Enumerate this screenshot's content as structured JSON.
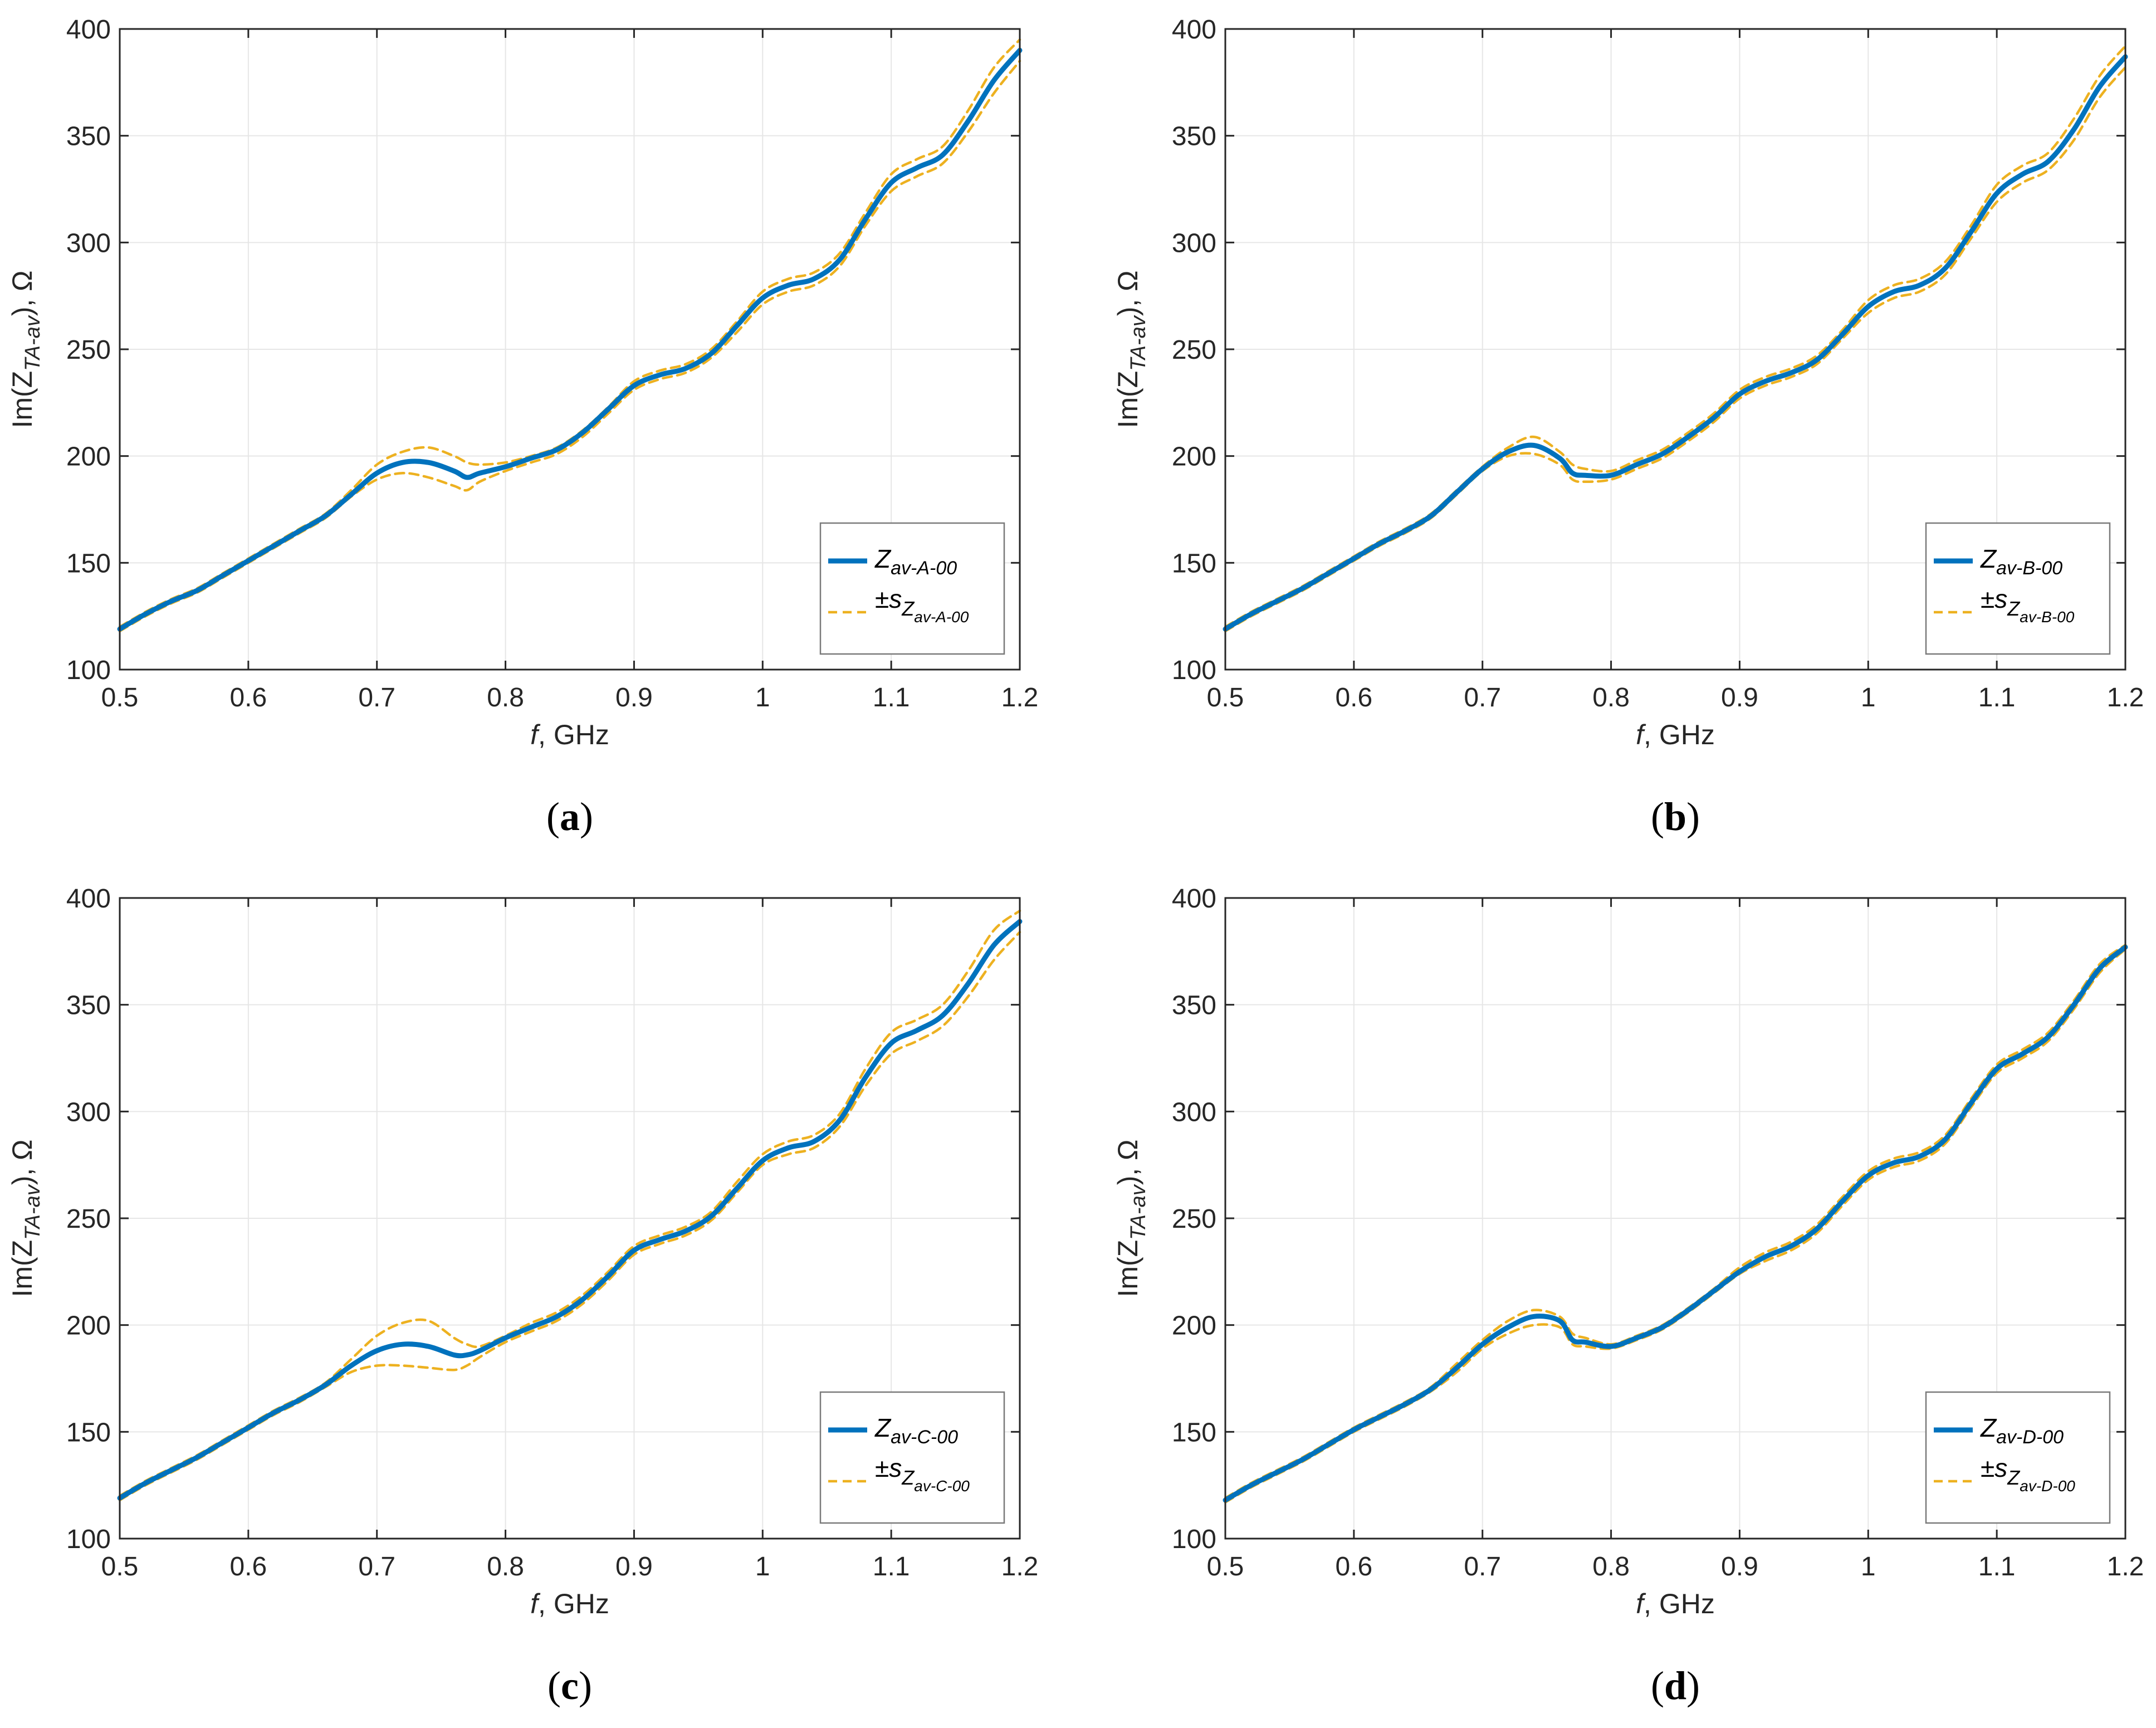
{
  "figure": {
    "panels": [
      "a",
      "b",
      "c",
      "d"
    ]
  },
  "colors": {
    "mean_line": "#0072BD",
    "std_line": "#EDB120",
    "grid": "#e6e6e6",
    "axis": "#262626",
    "legend_border": "#7a7a7a"
  },
  "chart_data": [
    {
      "type": "line",
      "panel_label": "(a)",
      "caption_letter": "a",
      "xlabel_italic": "f",
      "xlabel_rest": ", GHz",
      "ylabel_prefix": "Im(Z",
      "ylabel_sub": "TA-av",
      "ylabel_suffix": "), Ω",
      "xlim": [
        0.5,
        1.2
      ],
      "ylim": [
        100,
        400
      ],
      "xticks": [
        0.5,
        0.6,
        0.7,
        0.8,
        0.9,
        1,
        1.1,
        1.2
      ],
      "xtick_labels": [
        "0.5",
        "0.6",
        "0.7",
        "0.8",
        "0.9",
        "1",
        "1.1",
        "1.2"
      ],
      "yticks": [
        100,
        150,
        200,
        250,
        300,
        350,
        400
      ],
      "ytick_labels": [
        "100",
        "150",
        "200",
        "250",
        "300",
        "350",
        "400"
      ],
      "grid": true,
      "legend_position": "bottom-right",
      "legend": {
        "mean_main": "Z",
        "mean_sub": "av-A-00",
        "std_prefix": "±s",
        "std_sub1": "Z",
        "std_sub2": "av-A-00"
      },
      "x": [
        0.5,
        0.52,
        0.54,
        0.56,
        0.58,
        0.6,
        0.62,
        0.64,
        0.66,
        0.68,
        0.7,
        0.72,
        0.74,
        0.76,
        0.77,
        0.78,
        0.8,
        0.82,
        0.84,
        0.86,
        0.88,
        0.9,
        0.92,
        0.94,
        0.96,
        0.98,
        1.0,
        1.02,
        1.04,
        1.06,
        1.08,
        1.1,
        1.12,
        1.14,
        1.16,
        1.18,
        1.2
      ],
      "series": [
        {
          "name": "mean",
          "values": [
            119,
            126,
            132,
            137,
            144,
            151,
            158,
            165,
            172,
            182,
            192,
            197,
            197,
            193,
            190,
            192,
            195,
            199,
            203,
            211,
            222,
            233,
            238,
            241,
            248,
            261,
            274,
            280,
            283,
            292,
            311,
            328,
            335,
            341,
            357,
            376,
            390
          ]
        },
        {
          "name": "upper",
          "values": [
            120,
            127,
            133,
            138,
            145,
            152,
            159,
            166,
            173,
            184,
            196,
            202,
            204,
            200,
            197,
            196,
            197,
            200,
            204,
            212,
            223,
            235,
            240,
            243,
            250,
            263,
            277,
            283,
            286,
            295,
            314,
            332,
            339,
            345,
            362,
            382,
            395
          ]
        },
        {
          "name": "lower",
          "values": [
            118,
            125,
            131,
            136,
            143,
            150,
            157,
            164,
            171,
            181,
            189,
            192,
            190,
            186,
            184,
            188,
            193,
            197,
            201,
            209,
            220,
            231,
            236,
            239,
            246,
            258,
            271,
            277,
            280,
            289,
            308,
            324,
            331,
            337,
            352,
            370,
            385
          ]
        }
      ]
    },
    {
      "type": "line",
      "panel_label": "(b)",
      "caption_letter": "b",
      "xlabel_italic": "f",
      "xlabel_rest": ", GHz",
      "ylabel_prefix": "Im(Z",
      "ylabel_sub": "TA-av",
      "ylabel_suffix": "), Ω",
      "xlim": [
        0.5,
        1.2
      ],
      "ylim": [
        100,
        400
      ],
      "xticks": [
        0.5,
        0.6,
        0.7,
        0.8,
        0.9,
        1,
        1.1,
        1.2
      ],
      "xtick_labels": [
        "0.5",
        "0.6",
        "0.7",
        "0.8",
        "0.9",
        "1",
        "1.1",
        "1.2"
      ],
      "yticks": [
        100,
        150,
        200,
        250,
        300,
        350,
        400
      ],
      "ytick_labels": [
        "100",
        "150",
        "200",
        "250",
        "300",
        "350",
        "400"
      ],
      "grid": true,
      "legend_position": "bottom-right",
      "legend": {
        "mean_main": "Z",
        "mean_sub": "av-B-00",
        "std_prefix": "±s",
        "std_sub1": "Z",
        "std_sub2": "av-B-00"
      },
      "x": [
        0.5,
        0.52,
        0.54,
        0.56,
        0.58,
        0.6,
        0.62,
        0.64,
        0.66,
        0.68,
        0.7,
        0.72,
        0.74,
        0.76,
        0.77,
        0.78,
        0.8,
        0.82,
        0.84,
        0.86,
        0.88,
        0.9,
        0.92,
        0.94,
        0.96,
        0.98,
        1.0,
        1.02,
        1.04,
        1.06,
        1.08,
        1.1,
        1.12,
        1.14,
        1.16,
        1.18,
        1.2
      ],
      "series": [
        {
          "name": "mean",
          "values": [
            119,
            126,
            132,
            138,
            145,
            152,
            159,
            165,
            172,
            183,
            194,
            202,
            205,
            199,
            192,
            191,
            191,
            196,
            201,
            209,
            218,
            229,
            235,
            239,
            245,
            257,
            270,
            277,
            280,
            288,
            305,
            323,
            332,
            338,
            353,
            373,
            387
          ]
        },
        {
          "name": "upper",
          "values": [
            120,
            127,
            133,
            139,
            146,
            153,
            160,
            166,
            173,
            184,
            195,
            204,
            209,
            202,
            196,
            194,
            193,
            198,
            203,
            211,
            220,
            231,
            237,
            241,
            247,
            259,
            273,
            280,
            283,
            291,
            308,
            327,
            336,
            342,
            358,
            378,
            392
          ]
        },
        {
          "name": "lower",
          "values": [
            118,
            125,
            131,
            137,
            144,
            151,
            158,
            164,
            171,
            182,
            193,
            200,
            201,
            196,
            189,
            188,
            189,
            194,
            199,
            207,
            216,
            227,
            233,
            237,
            243,
            255,
            267,
            274,
            277,
            285,
            302,
            319,
            328,
            334,
            348,
            368,
            382
          ]
        }
      ]
    },
    {
      "type": "line",
      "panel_label": "(c)",
      "caption_letter": "c",
      "xlabel_italic": "f",
      "xlabel_rest": ", GHz",
      "ylabel_prefix": "Im(Z",
      "ylabel_sub": "TA-av",
      "ylabel_suffix": "), Ω",
      "xlim": [
        0.5,
        1.2
      ],
      "ylim": [
        100,
        400
      ],
      "xticks": [
        0.5,
        0.6,
        0.7,
        0.8,
        0.9,
        1,
        1.1,
        1.2
      ],
      "xtick_labels": [
        "0.5",
        "0.6",
        "0.7",
        "0.8",
        "0.9",
        "1",
        "1.1",
        "1.2"
      ],
      "yticks": [
        100,
        150,
        200,
        250,
        300,
        350,
        400
      ],
      "ytick_labels": [
        "100",
        "150",
        "200",
        "250",
        "300",
        "350",
        "400"
      ],
      "grid": true,
      "legend_position": "bottom-right",
      "legend": {
        "mean_main": "Z",
        "mean_sub": "av-C-00",
        "std_prefix": "±s",
        "std_sub1": "Z",
        "std_sub2": "av-C-00"
      },
      "x": [
        0.5,
        0.52,
        0.54,
        0.56,
        0.58,
        0.6,
        0.62,
        0.64,
        0.66,
        0.68,
        0.7,
        0.72,
        0.74,
        0.76,
        0.77,
        0.78,
        0.8,
        0.82,
        0.84,
        0.86,
        0.88,
        0.9,
        0.92,
        0.94,
        0.96,
        0.98,
        1.0,
        1.02,
        1.04,
        1.06,
        1.08,
        1.1,
        1.12,
        1.14,
        1.16,
        1.18,
        1.2
      ],
      "series": [
        {
          "name": "mean",
          "values": [
            119,
            126,
            132,
            138,
            145,
            152,
            159,
            165,
            172,
            181,
            188,
            191,
            190,
            186,
            186,
            188,
            194,
            199,
            204,
            212,
            223,
            235,
            240,
            244,
            251,
            264,
            277,
            283,
            286,
            296,
            316,
            332,
            338,
            345,
            360,
            378,
            389
          ]
        },
        {
          "name": "upper",
          "values": [
            120,
            127,
            133,
            139,
            146,
            153,
            160,
            166,
            173,
            184,
            195,
            201,
            202,
            194,
            191,
            190,
            195,
            201,
            206,
            214,
            225,
            237,
            242,
            246,
            253,
            267,
            280,
            286,
            289,
            299,
            320,
            337,
            343,
            350,
            366,
            385,
            394
          ]
        },
        {
          "name": "lower",
          "values": [
            118,
            125,
            131,
            137,
            144,
            151,
            158,
            164,
            171,
            178,
            181,
            181,
            180,
            179,
            181,
            185,
            192,
            197,
            202,
            210,
            221,
            233,
            238,
            242,
            249,
            262,
            275,
            280,
            283,
            293,
            312,
            327,
            333,
            340,
            354,
            371,
            384
          ]
        }
      ]
    },
    {
      "type": "line",
      "panel_label": "(d)",
      "caption_letter": "d",
      "xlabel_italic": "f",
      "xlabel_rest": ", GHz",
      "ylabel_prefix": "Im(Z",
      "ylabel_sub": "TA-av",
      "ylabel_suffix": "), Ω",
      "xlim": [
        0.5,
        1.2
      ],
      "ylim": [
        100,
        400
      ],
      "xticks": [
        0.5,
        0.6,
        0.7,
        0.8,
        0.9,
        1,
        1.1,
        1.2
      ],
      "xtick_labels": [
        "0.5",
        "0.6",
        "0.7",
        "0.8",
        "0.9",
        "1",
        "1.1",
        "1.2"
      ],
      "yticks": [
        100,
        150,
        200,
        250,
        300,
        350,
        400
      ],
      "ytick_labels": [
        "100",
        "150",
        "200",
        "250",
        "300",
        "350",
        "400"
      ],
      "grid": true,
      "legend_position": "bottom-right",
      "legend": {
        "mean_main": "Z",
        "mean_sub": "av-D-00",
        "std_prefix": "±s",
        "std_sub1": "Z",
        "std_sub2": "av-D-00"
      },
      "x": [
        0.5,
        0.52,
        0.54,
        0.56,
        0.58,
        0.6,
        0.62,
        0.64,
        0.66,
        0.68,
        0.7,
        0.72,
        0.74,
        0.76,
        0.77,
        0.78,
        0.8,
        0.82,
        0.84,
        0.86,
        0.88,
        0.9,
        0.92,
        0.94,
        0.96,
        0.98,
        1.0,
        1.02,
        1.04,
        1.06,
        1.08,
        1.1,
        1.12,
        1.14,
        1.16,
        1.18,
        1.2
      ],
      "series": [
        {
          "name": "mean",
          "values": [
            118,
            125,
            131,
            137,
            144,
            151,
            157,
            163,
            170,
            180,
            191,
            199,
            204,
            202,
            193,
            192,
            190,
            194,
            199,
            207,
            216,
            225,
            232,
            237,
            245,
            258,
            270,
            276,
            279,
            287,
            304,
            320,
            327,
            335,
            350,
            367,
            377
          ]
        },
        {
          "name": "upper",
          "values": [
            119,
            126,
            132,
            138,
            145,
            152,
            158,
            164,
            171,
            182,
            193,
            202,
            207,
            204,
            196,
            194,
            191,
            195,
            200,
            208,
            217,
            227,
            234,
            239,
            247,
            260,
            272,
            278,
            281,
            289,
            306,
            322,
            329,
            337,
            352,
            369,
            378
          ]
        },
        {
          "name": "lower",
          "values": [
            117,
            124,
            130,
            136,
            143,
            150,
            156,
            162,
            169,
            178,
            189,
            196,
            200,
            199,
            191,
            190,
            189,
            193,
            198,
            206,
            215,
            224,
            230,
            235,
            243,
            256,
            268,
            274,
            277,
            285,
            302,
            318,
            325,
            333,
            348,
            365,
            376
          ]
        }
      ]
    }
  ]
}
